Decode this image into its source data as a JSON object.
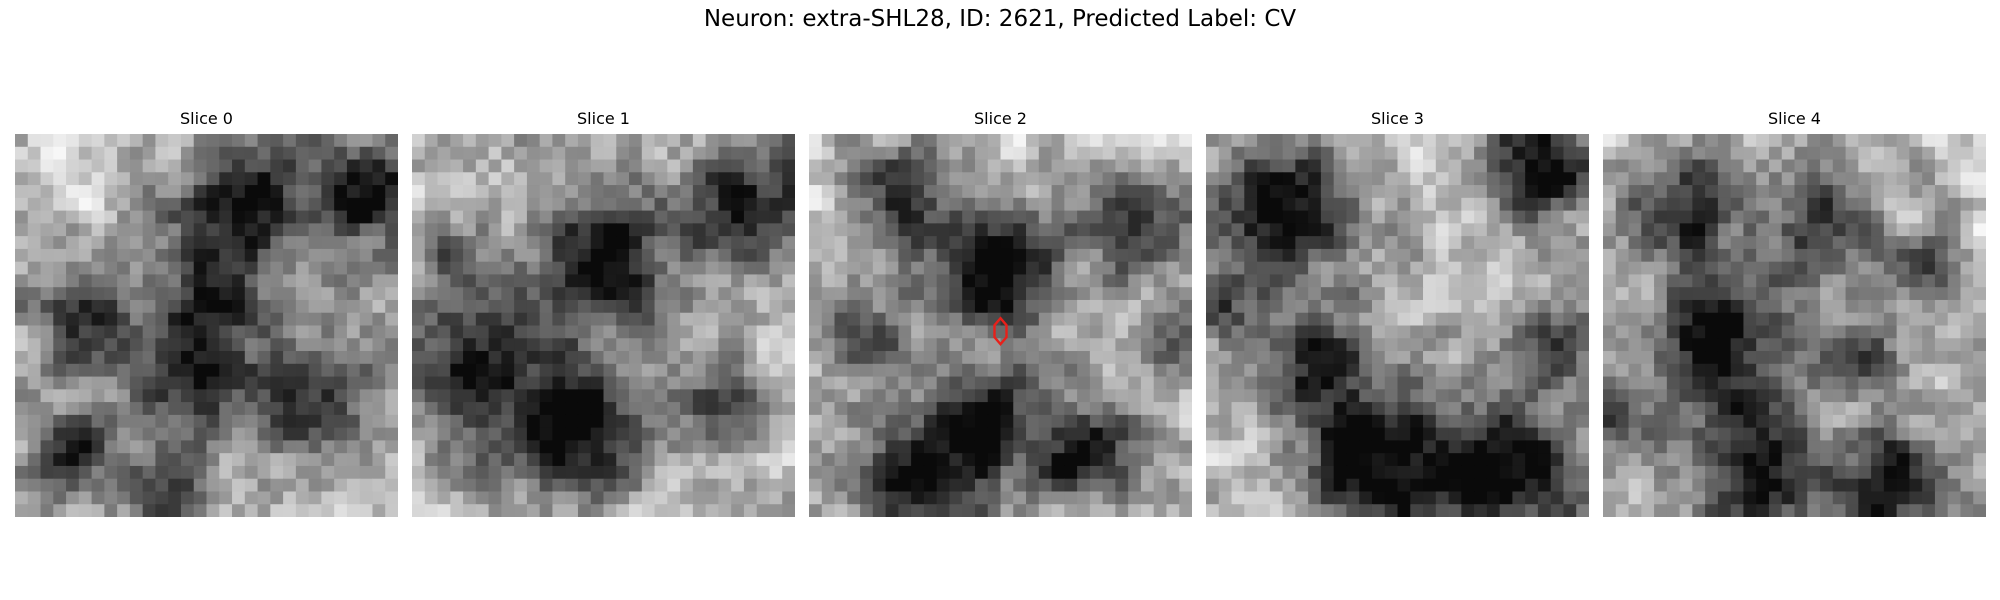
{
  "figure": {
    "title": "Neuron: extra-SHL28, ID: 2621, Predicted Label: CV"
  },
  "panels": [
    {
      "title": "Slice 0",
      "seed": 11,
      "blobs": [
        [
          0.6,
          0.18,
          0.12,
          0.9
        ],
        [
          0.92,
          0.15,
          0.1,
          0.9
        ],
        [
          0.5,
          0.45,
          0.1,
          0.8
        ],
        [
          0.18,
          0.48,
          0.1,
          0.7
        ],
        [
          0.45,
          0.67,
          0.1,
          0.8
        ],
        [
          0.78,
          0.68,
          0.12,
          0.7
        ],
        [
          0.15,
          0.82,
          0.08,
          0.8
        ],
        [
          0.4,
          0.93,
          0.08,
          0.6
        ]
      ]
    },
    {
      "title": "Slice 1",
      "seed": 23,
      "blobs": [
        [
          0.5,
          0.32,
          0.12,
          1.0
        ],
        [
          0.88,
          0.18,
          0.12,
          0.8
        ],
        [
          0.18,
          0.6,
          0.14,
          0.9
        ],
        [
          0.45,
          0.78,
          0.12,
          1.0
        ],
        [
          0.8,
          0.72,
          0.08,
          0.6
        ],
        [
          0.1,
          0.3,
          0.06,
          0.4
        ]
      ]
    },
    {
      "title": "Slice 2",
      "seed": 37,
      "blobs": [
        [
          0.5,
          0.37,
          0.11,
          1.0
        ],
        [
          0.25,
          0.17,
          0.1,
          0.7
        ],
        [
          0.85,
          0.25,
          0.1,
          0.7
        ],
        [
          0.12,
          0.52,
          0.08,
          0.6
        ],
        [
          0.45,
          0.73,
          0.09,
          0.8
        ],
        [
          0.72,
          0.83,
          0.1,
          0.9
        ],
        [
          0.3,
          0.93,
          0.12,
          1.0
        ],
        [
          0.95,
          0.55,
          0.05,
          0.5
        ]
      ]
    },
    {
      "title": "Slice 3",
      "seed": 41,
      "blobs": [
        [
          0.2,
          0.2,
          0.13,
          0.9
        ],
        [
          0.88,
          0.07,
          0.1,
          1.0
        ],
        [
          0.9,
          0.55,
          0.07,
          0.6
        ],
        [
          0.28,
          0.62,
          0.1,
          0.8
        ],
        [
          0.45,
          0.88,
          0.14,
          1.0
        ],
        [
          0.8,
          0.88,
          0.14,
          1.0
        ],
        [
          0.05,
          0.45,
          0.06,
          0.6
        ]
      ]
    },
    {
      "title": "Slice 4",
      "seed": 53,
      "blobs": [
        [
          0.2,
          0.18,
          0.1,
          0.8
        ],
        [
          0.55,
          0.25,
          0.1,
          0.7
        ],
        [
          0.85,
          0.35,
          0.08,
          0.6
        ],
        [
          0.3,
          0.52,
          0.12,
          1.0
        ],
        [
          0.65,
          0.58,
          0.08,
          0.6
        ],
        [
          0.4,
          0.87,
          0.12,
          0.9
        ],
        [
          0.75,
          0.9,
          0.1,
          0.9
        ],
        [
          0.05,
          0.75,
          0.06,
          0.5
        ]
      ]
    }
  ],
  "marker": {
    "panel": 2,
    "x": 0.5,
    "y": 0.515,
    "color": "#e8201a"
  },
  "grid_size": 30
}
